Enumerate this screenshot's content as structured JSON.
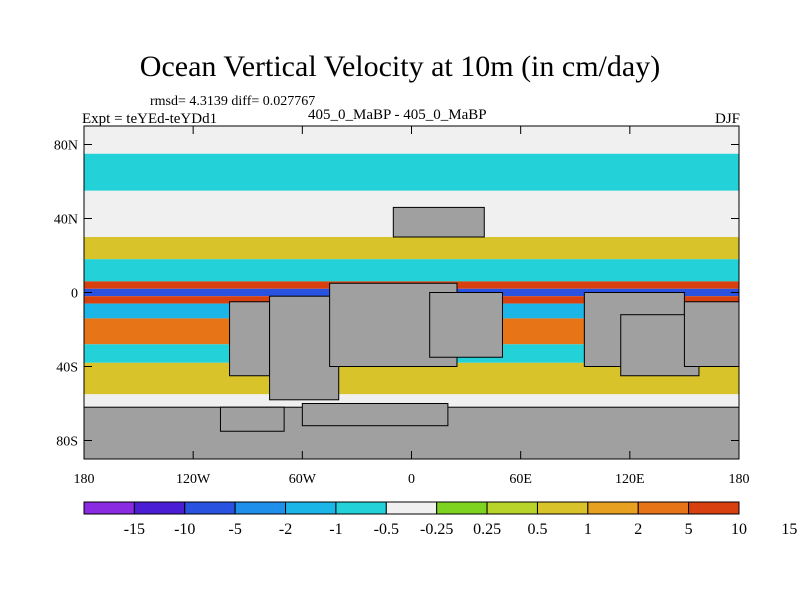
{
  "title": "Ocean Vertical Velocity at 10m (in cm/day)",
  "stats": "rmsd= 4.3139 diff= 0.027767",
  "experiment": "Expt = teYEd-teYDd1",
  "cases": "405_0_MaBP - 405_0_MaBP",
  "season": "DJF",
  "y_ticks": [
    {
      "label": "80N",
      "lat": 80
    },
    {
      "label": "40N",
      "lat": 40
    },
    {
      "label": "0",
      "lat": 0
    },
    {
      "label": "40S",
      "lat": -40
    },
    {
      "label": "80S",
      "lat": -80
    }
  ],
  "x_ticks": [
    {
      "label": "180",
      "lon": -180
    },
    {
      "label": "120W",
      "lon": -120
    },
    {
      "label": "60W",
      "lon": -60
    },
    {
      "label": "0",
      "lon": 0
    },
    {
      "label": "60E",
      "lon": 60
    },
    {
      "label": "120E",
      "lon": 120
    },
    {
      "label": "180",
      "lon": 180
    }
  ],
  "colorbar": {
    "colors": [
      "#8a2be2",
      "#4b1dd4",
      "#2a52e0",
      "#1e8fea",
      "#1cb5e8",
      "#22d2d8",
      "#f0f0f0",
      "#7ed321",
      "#b8d42a",
      "#d8c42a",
      "#e8a020",
      "#e87418",
      "#d84010"
    ],
    "labels": [
      "-15",
      "-10",
      "-5",
      "-2",
      "-1",
      "-0.5",
      "-0.25",
      "0.25",
      "0.5",
      "1",
      "2",
      "5",
      "10",
      "15"
    ]
  },
  "land_color": "#a0a0a0",
  "chart_data": {
    "type": "heatmap",
    "title": "Ocean Vertical Velocity at 10m (in cm/day)",
    "variable": "ocean vertical velocity difference at 10m",
    "units": "cm/day",
    "season": "DJF",
    "lon_range": [
      -180,
      180
    ],
    "lat_range": [
      -90,
      90
    ],
    "contour_levels": [
      -15,
      -10,
      -5,
      -2,
      -1,
      -0.5,
      -0.25,
      0.25,
      0.5,
      1,
      2,
      5,
      10,
      15
    ],
    "bands": [
      {
        "lat_min": 75,
        "lat_max": 90,
        "class": -0.5
      },
      {
        "lat_min": 55,
        "lat_max": 75,
        "class": -1
      },
      {
        "lat_min": 45,
        "lat_max": 55,
        "class": 0
      },
      {
        "lat_min": 30,
        "lat_max": 45,
        "class": -0.5
      },
      {
        "lat_min": 18,
        "lat_max": 30,
        "class": 0.5
      },
      {
        "lat_min": 6,
        "lat_max": 18,
        "class": -1
      },
      {
        "lat_min": 2,
        "lat_max": 6,
        "class": 5
      },
      {
        "lat_min": -2,
        "lat_max": 2,
        "class": -10
      },
      {
        "lat_min": -6,
        "lat_max": -2,
        "class": 10
      },
      {
        "lat_min": -14,
        "lat_max": -6,
        "class": -2
      },
      {
        "lat_min": -28,
        "lat_max": -14,
        "class": 2
      },
      {
        "lat_min": -38,
        "lat_max": -28,
        "class": -1
      },
      {
        "lat_min": -55,
        "lat_max": -38,
        "class": 0.5
      },
      {
        "lat_min": -72,
        "lat_max": -55,
        "class": -0.5
      },
      {
        "lat_min": -90,
        "lat_max": -72,
        "class": 1
      }
    ],
    "land_cells": [
      {
        "lon": [
          -10,
          40
        ],
        "lat": [
          30,
          46
        ]
      },
      {
        "lon": [
          -100,
          -78
        ],
        "lat": [
          -45,
          -5
        ]
      },
      {
        "lon": [
          -78,
          -40
        ],
        "lat": [
          -58,
          -2
        ]
      },
      {
        "lon": [
          -45,
          25
        ],
        "lat": [
          -40,
          5
        ]
      },
      {
        "lon": [
          10,
          50
        ],
        "lat": [
          -35,
          0
        ]
      },
      {
        "lon": [
          95,
          150
        ],
        "lat": [
          -40,
          0
        ]
      },
      {
        "lon": [
          115,
          158
        ],
        "lat": [
          -45,
          -12
        ]
      },
      {
        "lon": [
          150,
          180
        ],
        "lat": [
          -40,
          -5
        ]
      },
      {
        "lon": [
          -180,
          180
        ],
        "lat": [
          -90,
          -62
        ]
      },
      {
        "lon": [
          -60,
          20
        ],
        "lat": [
          -72,
          -60
        ]
      },
      {
        "lon": [
          -105,
          -70
        ],
        "lat": [
          -75,
          -62
        ]
      }
    ]
  }
}
